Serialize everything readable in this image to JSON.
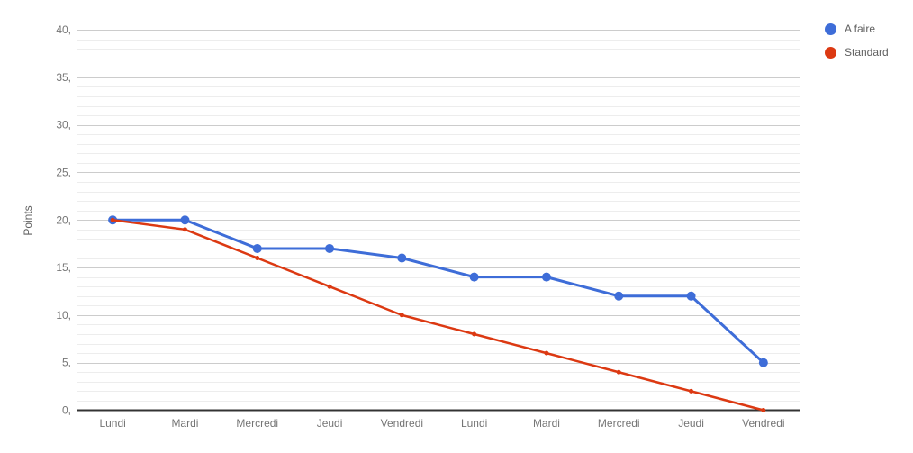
{
  "chart_data": {
    "type": "line",
    "title": "",
    "xlabel": "",
    "ylabel": "Points",
    "ylim": [
      0,
      40
    ],
    "y_major_step": 5,
    "y_minor_step": 1,
    "ytick_labels": [
      "0,",
      "5,",
      "10,",
      "15,",
      "20,",
      "25,",
      "30,",
      "35,",
      "40,"
    ],
    "categories": [
      "Lundi",
      "Mardi",
      "Mercredi",
      "Jeudi",
      "Vendredi",
      "Lundi",
      "Mardi",
      "Mercredi",
      "Jeudi",
      "Vendredi"
    ],
    "series": [
      {
        "name": "A faire",
        "color": "#3E6DD8",
        "values": [
          20,
          20,
          17,
          17,
          16,
          14,
          14,
          12,
          12,
          5
        ],
        "point_radius": 5,
        "line_width": 3
      },
      {
        "name": "Standard",
        "color": "#DC3912",
        "values": [
          20,
          19,
          16,
          13,
          10,
          8,
          6,
          4,
          2,
          0
        ],
        "point_radius": 2.5,
        "line_width": 2.5
      }
    ],
    "legend_position": "right-top",
    "grid": "horizontal, major every 5, minor every 1"
  },
  "colors": {
    "background": "#FFFFFF",
    "major_grid": "#CCCCCC",
    "minor_grid": "#EDEDED",
    "axis_line": "#333333",
    "tick_text": "#757575",
    "legend_text": "#616161"
  }
}
